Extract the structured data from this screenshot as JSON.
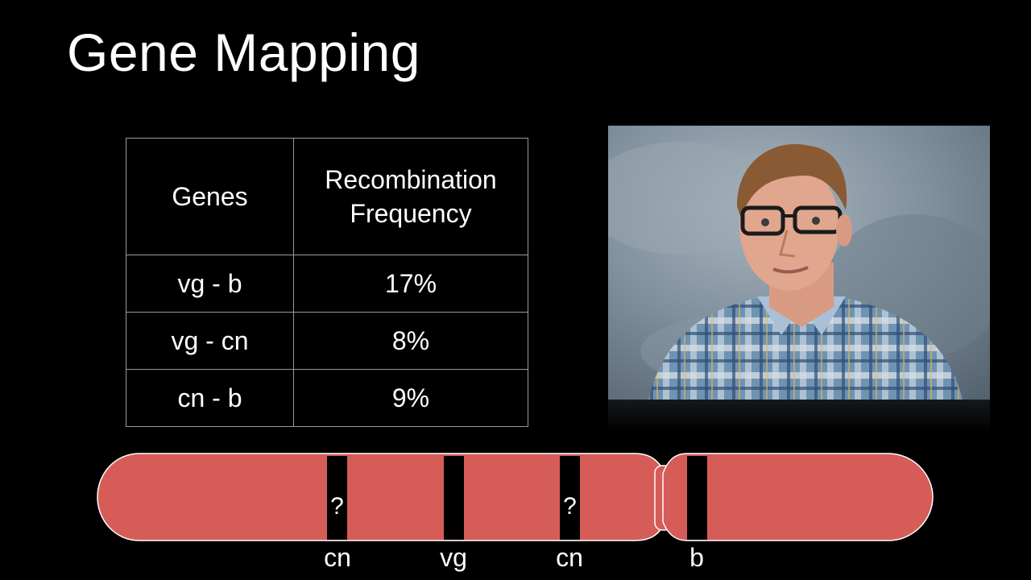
{
  "slide": {
    "title": "Gene Mapping"
  },
  "table": {
    "headers": {
      "genes": "Genes",
      "freq_line1": "Recombination",
      "freq_line2": "Frequency"
    },
    "rows": [
      {
        "genes": "vg - b",
        "freq": "17%"
      },
      {
        "genes": "vg - cn",
        "freq": "8%"
      },
      {
        "genes": "cn - b",
        "freq": "9%"
      }
    ]
  },
  "chromosome": {
    "color": "#d65c58",
    "band_color": "#000000",
    "question_marks": [
      "?",
      "?"
    ],
    "labels": [
      "cn",
      "vg",
      "cn",
      "b"
    ]
  }
}
